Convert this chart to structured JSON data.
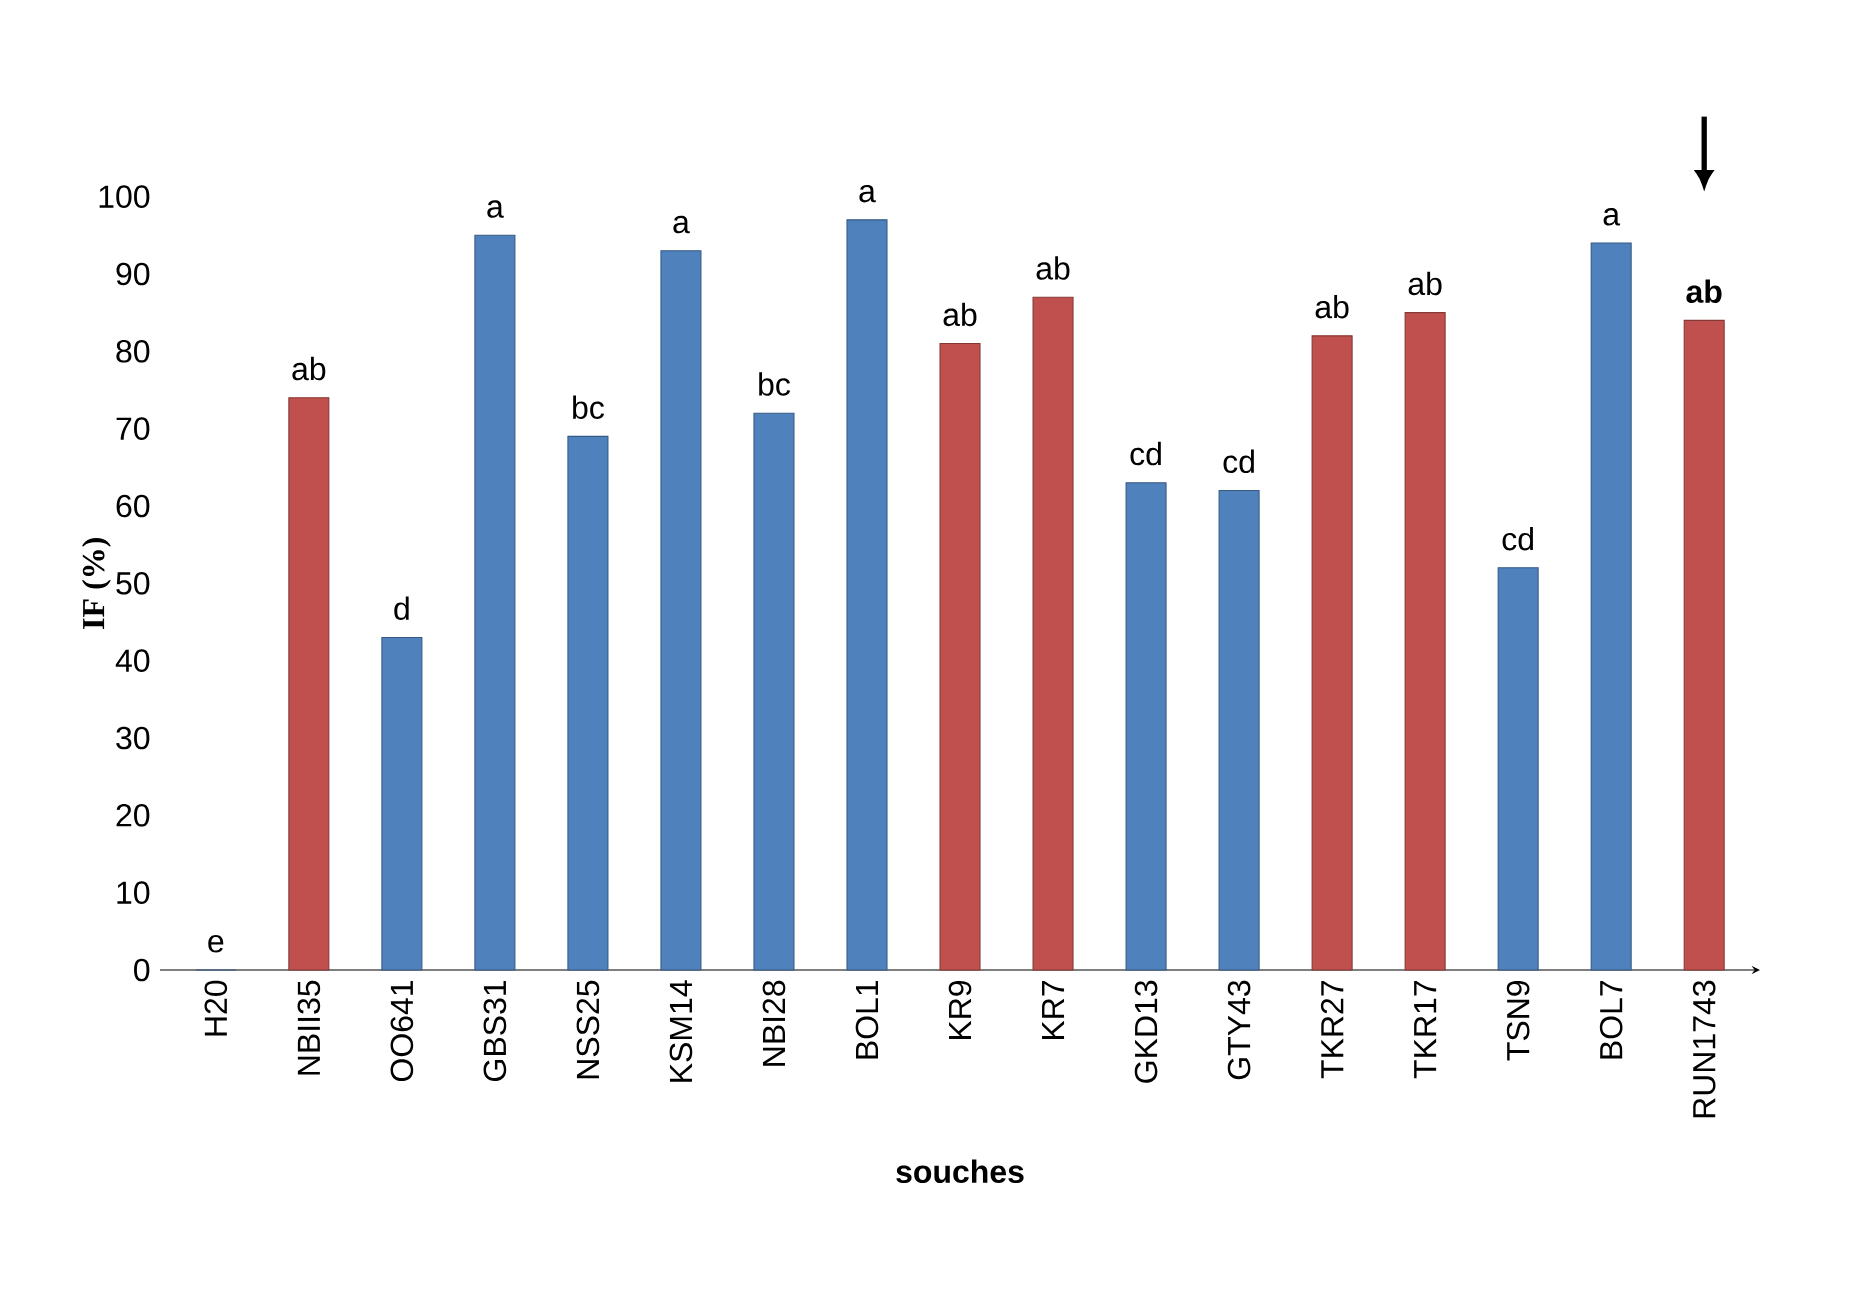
{
  "chart_data": {
    "type": "bar",
    "xlabel": "souches",
    "ylabel": "IF (%)",
    "categories": [
      "H20",
      "NBII35",
      "OO641",
      "GBS31",
      "NSS25",
      "KSM14",
      "NBI28",
      "BOL1",
      "KR9",
      "KR7",
      "GKD13",
      "GTY43",
      "TKR27",
      "TKR17",
      "TSN9",
      "BOL7",
      "RUN1743"
    ],
    "values": [
      0,
      74,
      43,
      95,
      69,
      93,
      72,
      97,
      81,
      87,
      63,
      62,
      82,
      85,
      52,
      94,
      84
    ],
    "colors": [
      "#4f81bd",
      "#c0504d",
      "#4f81bd",
      "#4f81bd",
      "#4f81bd",
      "#4f81bd",
      "#4f81bd",
      "#4f81bd",
      "#c0504d",
      "#c0504d",
      "#4f81bd",
      "#4f81bd",
      "#c0504d",
      "#c0504d",
      "#4f81bd",
      "#4f81bd",
      "#c0504d"
    ],
    "ylim": [
      0,
      100
    ],
    "yticks": [
      0,
      10,
      20,
      30,
      40,
      50,
      60,
      70,
      80,
      90,
      100
    ],
    "annotations": [
      {
        "text": "e",
        "x": "H20",
        "y": 0
      },
      {
        "text": "ab",
        "x": "NBII35",
        "y": 74
      },
      {
        "text": "d",
        "x": "OO641",
        "y": 43
      },
      {
        "text": "a",
        "x": "GBS31",
        "y": 95
      },
      {
        "text": "bc",
        "x": "NSS25",
        "y": 69
      },
      {
        "text": "a",
        "x": "KSM14",
        "y": 93
      },
      {
        "text": "bc",
        "x": "NBI28",
        "y": 72
      },
      {
        "text": "a",
        "x": "BOL1",
        "y": 97
      },
      {
        "text": "ab",
        "x": "KR9",
        "y": 81
      },
      {
        "text": "ab",
        "x": "KR7",
        "y": 87
      },
      {
        "text": "cd",
        "x": "GKD13",
        "y": 63
      },
      {
        "text": "cd",
        "x": "GTY43",
        "y": 62
      },
      {
        "text": "ab",
        "x": "TKR27",
        "y": 82
      },
      {
        "text": "ab",
        "x": "TKR17",
        "y": 85
      },
      {
        "text": "cd",
        "x": "TSN9",
        "y": 52
      },
      {
        "text": "a",
        "x": "BOL7",
        "y": 94
      },
      {
        "text": "**ab**",
        "x": "RUN1743",
        "y": 84
      }
    ]
  }
}
